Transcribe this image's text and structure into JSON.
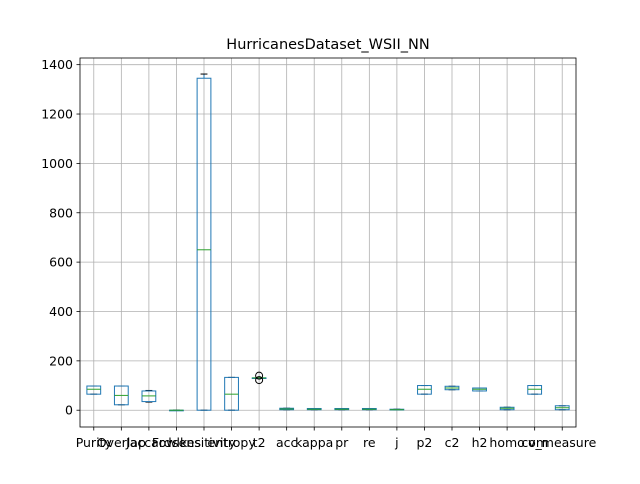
{
  "chart_data": {
    "type": "box",
    "title": "HurricanesDataset_WSII_NN",
    "xlabel": "",
    "ylabel": "",
    "ylim": [
      -68,
      1427
    ],
    "yticks": [
      0,
      200,
      400,
      600,
      800,
      1000,
      1200,
      1400
    ],
    "grid": true,
    "colors": {
      "box": "#1f77b4",
      "median": "#2ca02c",
      "grid": "#b0b0b0",
      "axis": "#000000"
    },
    "categories": [
      "Purity",
      "Overlap",
      "Jaccard",
      "Fowlkes",
      "sensitivity",
      "entropy",
      "t2",
      "acc",
      "kappa",
      "pr",
      "re",
      "j",
      "p2",
      "c2",
      "h2",
      "homo",
      "com",
      "v_measure"
    ],
    "tick_labels": [
      "Purity",
      "Overlap",
      "Jaccard",
      "Fowlkes",
      "sensitivity",
      "entropy",
      "t2",
      "acc",
      "kappa",
      "pr",
      "re",
      "j",
      "p2",
      "c2",
      "h2",
      "homo",
      "com",
      "v_measure"
    ],
    "boxes": [
      {
        "name": "Purity",
        "whislo": 65,
        "q1": 65,
        "med": 85,
        "q3": 98,
        "whishi": 98,
        "fliers": []
      },
      {
        "name": "Overlap",
        "whislo": 22,
        "q1": 22,
        "med": 60,
        "q3": 98,
        "whishi": 98,
        "fliers": []
      },
      {
        "name": "Jaccard",
        "whislo": 33,
        "q1": 35,
        "med": 58,
        "q3": 78,
        "whishi": 80,
        "fliers": []
      },
      {
        "name": "Fowlkes",
        "whislo": 0,
        "q1": 0,
        "med": 0,
        "q3": 0,
        "whishi": 0,
        "fliers": []
      },
      {
        "name": "sensitivity",
        "whislo": 0,
        "q1": 0,
        "med": 650,
        "q3": 1345,
        "whishi": 1362,
        "fliers": []
      },
      {
        "name": "entropy",
        "whislo": 0,
        "q1": 0,
        "med": 65,
        "q3": 133,
        "whishi": 133,
        "fliers": []
      },
      {
        "name": "t2",
        "whislo": 131,
        "q1": 131,
        "med": 131,
        "q3": 131,
        "whishi": 131,
        "fliers": [
          122,
          140
        ]
      },
      {
        "name": "acc",
        "whislo": 2,
        "q1": 2,
        "med": 5,
        "q3": 8,
        "whishi": 8,
        "fliers": []
      },
      {
        "name": "kappa",
        "whislo": 2,
        "q1": 2,
        "med": 4,
        "q3": 7,
        "whishi": 7,
        "fliers": []
      },
      {
        "name": "pr",
        "whislo": 2,
        "q1": 2,
        "med": 4,
        "q3": 7,
        "whishi": 7,
        "fliers": []
      },
      {
        "name": "re",
        "whislo": 2,
        "q1": 2,
        "med": 4,
        "q3": 7,
        "whishi": 7,
        "fliers": []
      },
      {
        "name": "j",
        "whislo": 1,
        "q1": 1,
        "med": 2,
        "q3": 4,
        "whishi": 4,
        "fliers": []
      },
      {
        "name": "p2",
        "whislo": 65,
        "q1": 65,
        "med": 85,
        "q3": 100,
        "whishi": 100,
        "fliers": []
      },
      {
        "name": "c2",
        "whislo": 83,
        "q1": 83,
        "med": 90,
        "q3": 97,
        "whishi": 97,
        "fliers": []
      },
      {
        "name": "h2",
        "whislo": 78,
        "q1": 78,
        "med": 85,
        "q3": 90,
        "whishi": 90,
        "fliers": []
      },
      {
        "name": "homo",
        "whislo": 2,
        "q1": 2,
        "med": 8,
        "q3": 12,
        "whishi": 12,
        "fliers": []
      },
      {
        "name": "com",
        "whislo": 65,
        "q1": 65,
        "med": 85,
        "q3": 100,
        "whishi": 100,
        "fliers": []
      },
      {
        "name": "v_measure",
        "whislo": 2,
        "q1": 2,
        "med": 10,
        "q3": 18,
        "whishi": 18,
        "fliers": []
      }
    ]
  }
}
